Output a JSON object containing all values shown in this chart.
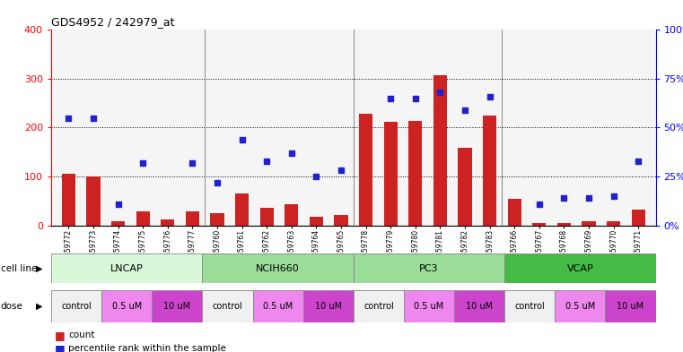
{
  "title": "GDS4952 / 242979_at",
  "samples": [
    "GSM1359772",
    "GSM1359773",
    "GSM1359774",
    "GSM1359775",
    "GSM1359776",
    "GSM1359777",
    "GSM1359760",
    "GSM1359761",
    "GSM1359762",
    "GSM1359763",
    "GSM1359764",
    "GSM1359765",
    "GSM1359778",
    "GSM1359779",
    "GSM1359780",
    "GSM1359781",
    "GSM1359782",
    "GSM1359783",
    "GSM1359766",
    "GSM1359767",
    "GSM1359768",
    "GSM1359769",
    "GSM1359770",
    "GSM1359771"
  ],
  "bar_values": [
    105,
    100,
    8,
    28,
    12,
    28,
    25,
    65,
    35,
    43,
    18,
    22,
    228,
    212,
    213,
    307,
    158,
    225,
    55,
    5,
    5,
    8,
    8,
    32
  ],
  "scatter_values": [
    55,
    55,
    11,
    32,
    null,
    32,
    22,
    44,
    33,
    37,
    25,
    28,
    null,
    65,
    65,
    68,
    59,
    66,
    null,
    11,
    14,
    14,
    15,
    33
  ],
  "cell_lines": [
    {
      "name": "LNCAP",
      "start": 0,
      "end": 6,
      "color": "#d9f7d9"
    },
    {
      "name": "NCIH660",
      "start": 6,
      "end": 12,
      "color": "#99dd99"
    },
    {
      "name": "PC3",
      "start": 12,
      "end": 18,
      "color": "#99dd99"
    },
    {
      "name": "VCAP",
      "start": 18,
      "end": 24,
      "color": "#44bb44"
    }
  ],
  "dose_groups": [
    {
      "name": "control",
      "start": 0,
      "end": 2,
      "color": "#f0f0f0"
    },
    {
      "name": "0.5 uM",
      "start": 2,
      "end": 4,
      "color": "#ee88ee"
    },
    {
      "name": "10 uM",
      "start": 4,
      "end": 6,
      "color": "#cc44cc"
    },
    {
      "name": "control",
      "start": 6,
      "end": 8,
      "color": "#f0f0f0"
    },
    {
      "name": "0.5 uM",
      "start": 8,
      "end": 10,
      "color": "#ee88ee"
    },
    {
      "name": "10 uM",
      "start": 10,
      "end": 12,
      "color": "#cc44cc"
    },
    {
      "name": "control",
      "start": 12,
      "end": 14,
      "color": "#f0f0f0"
    },
    {
      "name": "0.5 uM",
      "start": 14,
      "end": 16,
      "color": "#ee88ee"
    },
    {
      "name": "10 uM",
      "start": 16,
      "end": 18,
      "color": "#cc44cc"
    },
    {
      "name": "control",
      "start": 18,
      "end": 20,
      "color": "#f0f0f0"
    },
    {
      "name": "0.5 uM",
      "start": 20,
      "end": 22,
      "color": "#ee88ee"
    },
    {
      "name": "10 uM",
      "start": 22,
      "end": 24,
      "color": "#cc44cc"
    }
  ],
  "ylim_left": [
    0,
    400
  ],
  "ylim_right": [
    0,
    100
  ],
  "yticks_left": [
    0,
    100,
    200,
    300,
    400
  ],
  "yticks_right": [
    0,
    25,
    50,
    75,
    100
  ],
  "bar_color": "#cc2222",
  "scatter_color": "#2222cc"
}
